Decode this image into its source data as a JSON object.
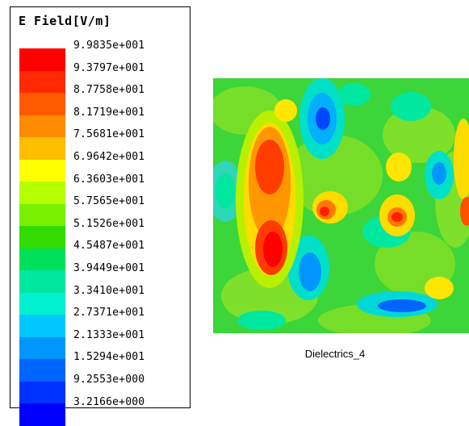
{
  "legend": {
    "title": "E Field[V/m]",
    "labels": [
      "9.9835e+001",
      "9.3797e+001",
      "8.7758e+001",
      "8.1719e+001",
      "7.5681e+001",
      "6.9642e+001",
      "6.3603e+001",
      "5.7565e+001",
      "5.1526e+001",
      "4.5487e+001",
      "3.9449e+001",
      "3.3410e+001",
      "2.7371e+001",
      "2.1333e+001",
      "1.5294e+001",
      "9.2553e+000",
      "3.2166e+000"
    ],
    "colors": [
      "#ff0000",
      "#ff2a00",
      "#ff5a00",
      "#ff8c00",
      "#ffbe00",
      "#ffff00",
      "#b4ff00",
      "#78f000",
      "#32dc00",
      "#00e05a",
      "#00e8a0",
      "#00f0d0",
      "#00c8ff",
      "#0096ff",
      "#0064ff",
      "#0032ff",
      "#0000ff"
    ]
  },
  "plot": {
    "name": "Dielectrics_4"
  }
}
